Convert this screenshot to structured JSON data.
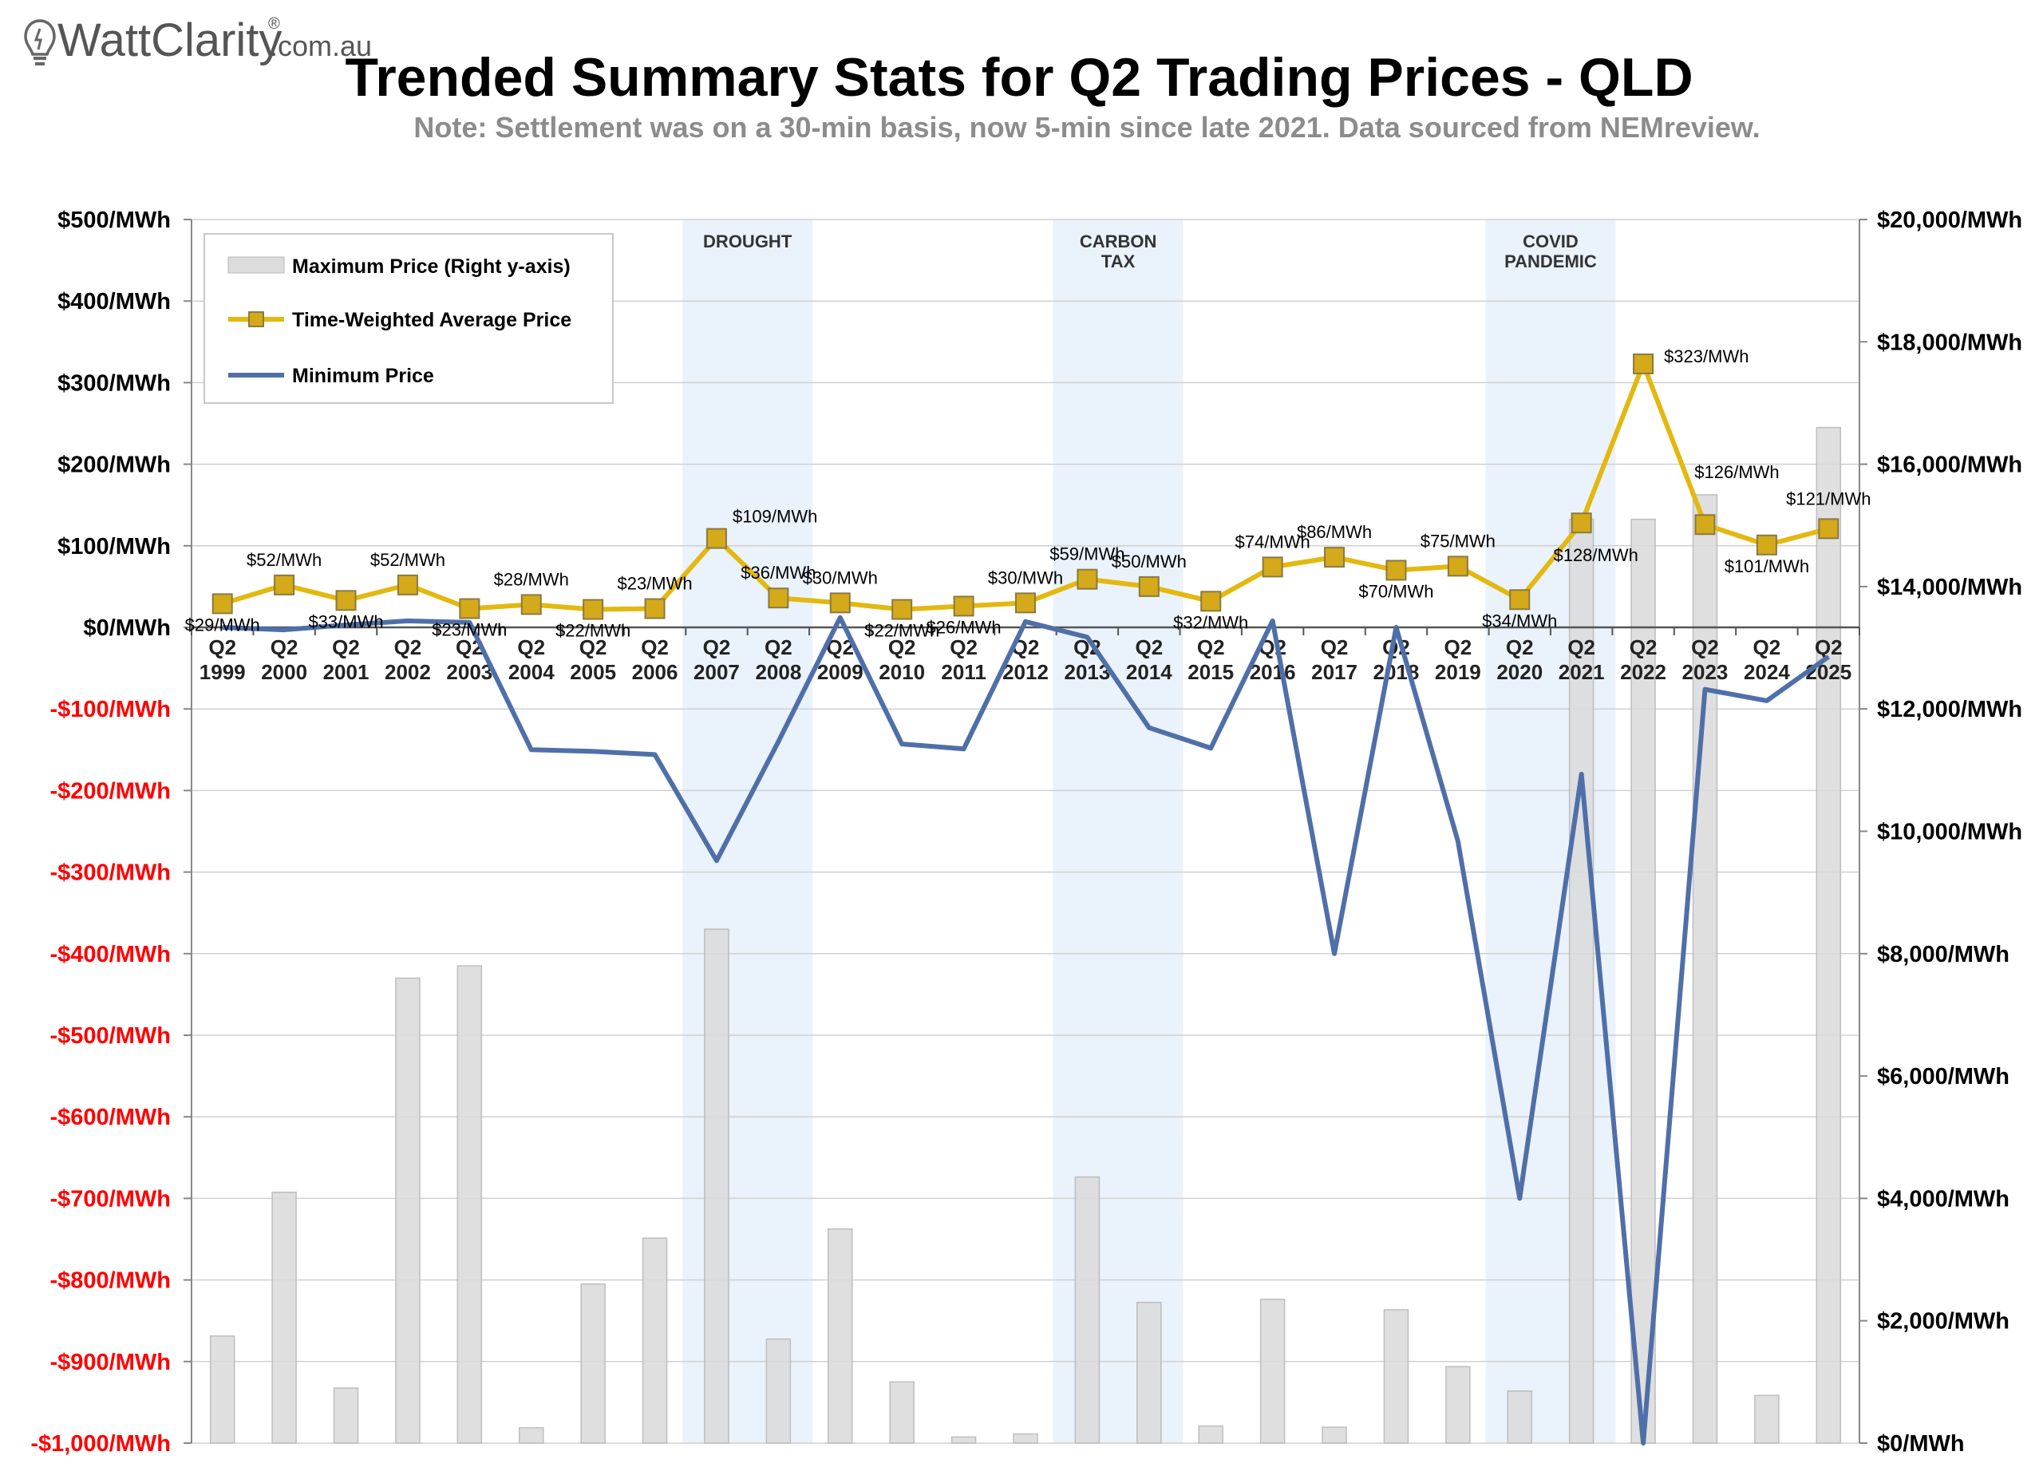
{
  "brand": {
    "name": "WattClarity",
    "registered": "®",
    "suffix": ".com.au"
  },
  "colors": {
    "avg_line": "#E3B80F",
    "avg_marker_fill": "#D4A91A",
    "avg_marker_stroke": "#8A7A40",
    "min_line": "#4F6FA8",
    "max_bar_fill": "#DCDCDC",
    "max_bar_stroke": "#B8B8B8",
    "period_band": "#DCEAF8",
    "neg_tick": "#FF0000",
    "grid": "#D0D0D0"
  },
  "chart_data": {
    "type": "bar+line",
    "title": "Trended Summary Stats for Q2 Trading Prices - QLD",
    "subtitle": "Note: Settlement was on a 30-min basis, now 5-min since late 2021. Data sourced from NEMreview.",
    "categories": [
      [
        "Q2",
        "1999"
      ],
      [
        "Q2",
        "2000"
      ],
      [
        "Q2",
        "2001"
      ],
      [
        "Q2",
        "2002"
      ],
      [
        "Q2",
        "2003"
      ],
      [
        "Q2",
        "2004"
      ],
      [
        "Q2",
        "2005"
      ],
      [
        "Q2",
        "2006"
      ],
      [
        "Q2",
        "2007"
      ],
      [
        "Q2",
        "2008"
      ],
      [
        "Q2",
        "2009"
      ],
      [
        "Q2",
        "2010"
      ],
      [
        "Q2",
        "2011"
      ],
      [
        "Q2",
        "2012"
      ],
      [
        "Q2",
        "2013"
      ],
      [
        "Q2",
        "2014"
      ],
      [
        "Q2",
        "2015"
      ],
      [
        "Q2",
        "2016"
      ],
      [
        "Q2",
        "2017"
      ],
      [
        "Q2",
        "2018"
      ],
      [
        "Q2",
        "2019"
      ],
      [
        "Q2",
        "2020"
      ],
      [
        "Q2",
        "2021"
      ],
      [
        "Q2",
        "2022"
      ],
      [
        "Q2",
        "2023"
      ],
      [
        "Q2",
        "2024"
      ],
      [
        "Q2",
        "2025"
      ]
    ],
    "left_axis": {
      "ylim": [
        -1000,
        500
      ],
      "ticks": [
        500,
        400,
        300,
        200,
        100,
        0,
        -100,
        -200,
        -300,
        -400,
        -500,
        -600,
        -700,
        -800,
        -900,
        -1000
      ],
      "tick_labels": [
        "$500/MWh",
        "$400/MWh",
        "$300/MWh",
        "$200/MWh",
        "$100/MWh",
        "$0/MWh",
        "-$100/MWh",
        "-$200/MWh",
        "-$300/MWh",
        "-$400/MWh",
        "-$500/MWh",
        "-$600/MWh",
        "-$700/MWh",
        "-$800/MWh",
        "-$900/MWh",
        "-$1,000/MWh"
      ]
    },
    "right_axis": {
      "ylim": [
        0,
        20000
      ],
      "ticks": [
        20000,
        18000,
        16000,
        14000,
        12000,
        10000,
        8000,
        6000,
        4000,
        2000,
        0
      ],
      "tick_labels": [
        "$20,000/MWh",
        "$18,000/MWh",
        "$16,000/MWh",
        "$14,000/MWh",
        "$12,000/MWh",
        "$10,000/MWh",
        "$8,000/MWh",
        "$6,000/MWh",
        "$4,000/MWh",
        "$2,000/MWh",
        "$0/MWh"
      ]
    },
    "grid": true,
    "legend": {
      "placement": "top-left"
    },
    "series": [
      {
        "name": "Maximum Price (Right y-axis)",
        "type": "bar",
        "axis": "right",
        "values": [
          1750,
          4100,
          900,
          7600,
          7800,
          250,
          2600,
          3350,
          8400,
          1700,
          3500,
          1000,
          100,
          150,
          4350,
          2300,
          280,
          2350,
          260,
          2180,
          1250,
          850,
          15100,
          15100,
          15500,
          780,
          16600
        ]
      },
      {
        "name": "Time-Weighted Average Price",
        "type": "line",
        "axis": "left",
        "values": [
          29,
          52,
          33,
          52,
          23,
          28,
          22,
          23,
          109,
          36,
          30,
          22,
          26,
          30,
          59,
          50,
          32,
          74,
          86,
          70,
          75,
          34,
          128,
          323,
          126,
          101,
          121
        ],
        "labels": [
          "$29/MWh",
          "$52/MWh",
          "$33/MWh",
          "$52/MWh",
          "$23/MWh",
          "$28/MWh",
          "$22/MWh",
          "$23/MWh",
          "$109/MWh",
          "$36/MWh",
          "$30/MWh",
          "$22/MWh",
          "$26/MWh",
          "$30/MWh",
          "$59/MWh",
          "$50/MWh",
          "$32/MWh",
          "$74/MWh",
          "$86/MWh",
          "$70/MWh",
          "$75/MWh",
          "$34/MWh",
          "$128/MWh",
          "$323/MWh",
          "$126/MWh",
          "$101/MWh",
          "$121/MWh"
        ]
      },
      {
        "name": "Minimum Price",
        "type": "line",
        "axis": "left",
        "values": [
          0,
          -3,
          3,
          8,
          6,
          -150,
          -152,
          -156,
          -286,
          -140,
          12,
          -143,
          -149,
          7,
          -12,
          -123,
          -148,
          8,
          -400,
          0,
          -262,
          -700,
          -180,
          -1000,
          -76,
          -90,
          -36
        ]
      }
    ],
    "periods": [
      {
        "label": [
          "DROUGHT"
        ],
        "from": 8,
        "to": 9
      },
      {
        "label": [
          "CARBON",
          "TAX"
        ],
        "from": 14,
        "to": 15
      },
      {
        "label": [
          "COVID",
          "PANDEMIC"
        ],
        "from": 21,
        "to": 22
      }
    ]
  }
}
